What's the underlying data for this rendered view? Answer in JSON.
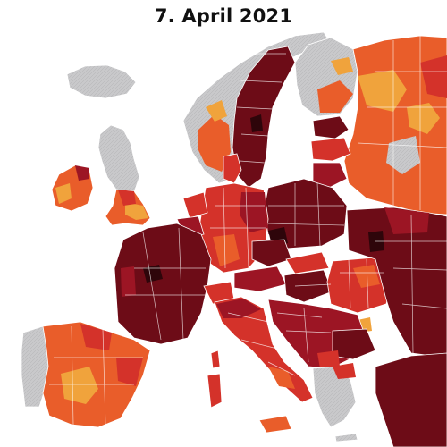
{
  "title": "7. April 2021",
  "colors": {
    "sea": "#ffffff",
    "no_data": "#c9c9cb",
    "level_1": "#f0a33c",
    "level_2": "#e95d2a",
    "level_3": "#d4322a",
    "level_4": "#9c1524",
    "level_5": "#6d0c17",
    "level_6": "#2e050a"
  }
}
